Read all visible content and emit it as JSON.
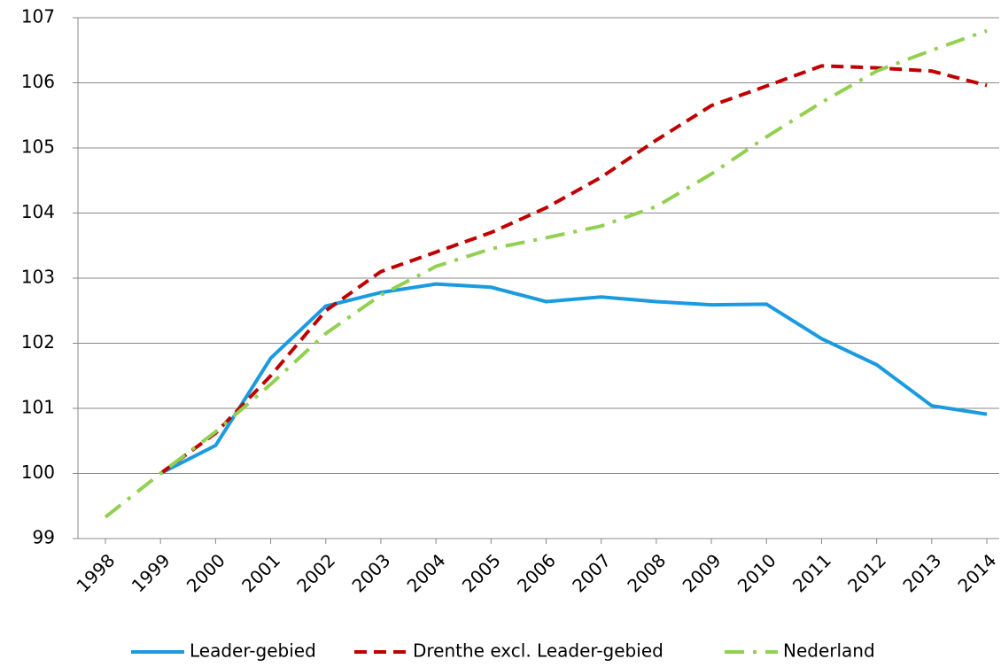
{
  "chart_data": {
    "type": "line",
    "categories": [
      "1998",
      "1999",
      "2000",
      "2001",
      "2002",
      "2003",
      "2004",
      "2005",
      "2006",
      "2007",
      "2008",
      "2009",
      "2010",
      "2011",
      "2012",
      "2013",
      "2014"
    ],
    "series": [
      {
        "name": "Leader-gebied",
        "color": "#1a9be0",
        "dash": "solid",
        "values": [
          null,
          100,
          100.43,
          101.77,
          102.57,
          102.78,
          102.91,
          102.86,
          102.64,
          102.71,
          102.64,
          102.59,
          102.6,
          102.07,
          101.67,
          101.04,
          100.91
        ]
      },
      {
        "name": "Drenthe excl. Leader-gebied",
        "color": "#c00000",
        "dash": "dash",
        "values": [
          null,
          100,
          100.62,
          101.5,
          102.5,
          103.1,
          103.4,
          103.7,
          104.08,
          104.55,
          105.12,
          105.65,
          105.95,
          106.26,
          106.23,
          106.18,
          105.96
        ]
      },
      {
        "name": "Nederland",
        "color": "#92d050",
        "dash": "dashdot",
        "values": [
          99.33,
          100,
          100.64,
          101.37,
          102.15,
          102.74,
          103.18,
          103.45,
          103.62,
          103.8,
          104.1,
          104.6,
          105.17,
          105.7,
          106.18,
          106.5,
          106.8
        ]
      }
    ],
    "ylim": [
      99,
      107
    ],
    "yticks": [
      99,
      100,
      101,
      102,
      103,
      104,
      105,
      106,
      107
    ],
    "grid": true,
    "legend": "bottom"
  }
}
